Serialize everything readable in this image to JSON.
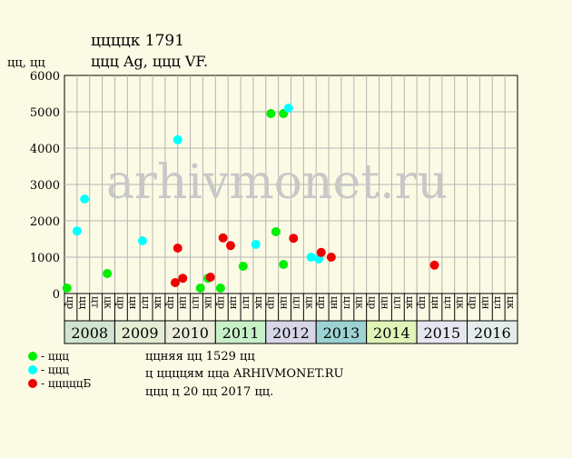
{
  "header": {
    "title": "ццццк 1791",
    "subtitle": "ццц Ag, ццц VF.",
    "y_unit": "цц, цц"
  },
  "watermark": "arhivmonet.ru",
  "legend": {
    "items": [
      {
        "label": "- ццц",
        "color": "#00ee00"
      },
      {
        "label": "- ццц",
        "color": "#00ffff"
      },
      {
        "label": "- цццццБ",
        "color": "#ee0000"
      }
    ]
  },
  "footer": {
    "lines": [
      "ццняя цц 1529 цц",
      "ц ццццям ццa ARHIVMONET.RU",
      "ццц ц 20 цц 2017 цц."
    ]
  },
  "colors": {
    "background": "#fbfbe5",
    "grid": "#b4b4b4",
    "watermark": "#c8c8c8"
  },
  "chart_data": {
    "type": "scatter",
    "ylabel": "цц, цц",
    "ylim": [
      0,
      6000
    ],
    "yticks": [
      0,
      1000,
      2000,
      3000,
      4000,
      5000,
      6000
    ],
    "grid": true,
    "x_axis": {
      "years": [
        {
          "label": "2008",
          "color": "#d0e4d0"
        },
        {
          "label": "2009",
          "color": "#e4ecd4"
        },
        {
          "label": "2010",
          "color": "#ececdc"
        },
        {
          "label": "2011",
          "color": "#c8f0c8"
        },
        {
          "label": "2012",
          "color": "#d6d6e8"
        },
        {
          "label": "2013",
          "color": "#9cd2d2"
        },
        {
          "label": "2014",
          "color": "#e0f4b8"
        },
        {
          "label": "2015",
          "color": "#e6e6f0"
        },
        {
          "label": "2016",
          "color": "#e4ecec"
        }
      ],
      "month_labels": [
        "цр",
        "цц",
        "цт",
        "цк",
        "цр",
        "цн",
        "цл",
        "цк",
        "цр",
        "цн",
        "цл",
        "цк",
        "цр",
        "цн",
        "цл",
        "цк",
        "цр",
        "цн",
        "цл",
        "цк",
        "цр",
        "цн",
        "цл",
        "цк",
        "цр",
        "цн",
        "цл",
        "цк",
        "цр",
        "цн",
        "цл",
        "цк",
        "цр",
        "цн",
        "цл",
        "цк"
      ]
    },
    "series": [
      {
        "color": "#00ee00",
        "points": [
          {
            "x": 2008.05,
            "y": 150
          },
          {
            "x": 2008.85,
            "y": 550
          },
          {
            "x": 2010.7,
            "y": 150
          },
          {
            "x": 2010.85,
            "y": 420
          },
          {
            "x": 2011.1,
            "y": 150
          },
          {
            "x": 2011.55,
            "y": 750
          },
          {
            "x": 2012.1,
            "y": 4950
          },
          {
            "x": 2012.2,
            "y": 1700
          },
          {
            "x": 2012.35,
            "y": 800
          },
          {
            "x": 2012.35,
            "y": 4950
          }
        ]
      },
      {
        "color": "#00ffff",
        "points": [
          {
            "x": 2008.25,
            "y": 1720
          },
          {
            "x": 2008.4,
            "y": 2600
          },
          {
            "x": 2009.55,
            "y": 1450
          },
          {
            "x": 2010.25,
            "y": 4230
          },
          {
            "x": 2011.8,
            "y": 1350
          },
          {
            "x": 2012.45,
            "y": 5100
          },
          {
            "x": 2012.9,
            "y": 1000
          },
          {
            "x": 2013.05,
            "y": 950
          }
        ]
      },
      {
        "color": "#ee0000",
        "points": [
          {
            "x": 2010.2,
            "y": 300
          },
          {
            "x": 2010.25,
            "y": 1250
          },
          {
            "x": 2010.35,
            "y": 420
          },
          {
            "x": 2010.9,
            "y": 450
          },
          {
            "x": 2011.15,
            "y": 1530
          },
          {
            "x": 2011.3,
            "y": 1320
          },
          {
            "x": 2012.55,
            "y": 1520
          },
          {
            "x": 2013.1,
            "y": 1130
          },
          {
            "x": 2013.3,
            "y": 1000
          },
          {
            "x": 2015.35,
            "y": 780
          }
        ]
      }
    ]
  }
}
